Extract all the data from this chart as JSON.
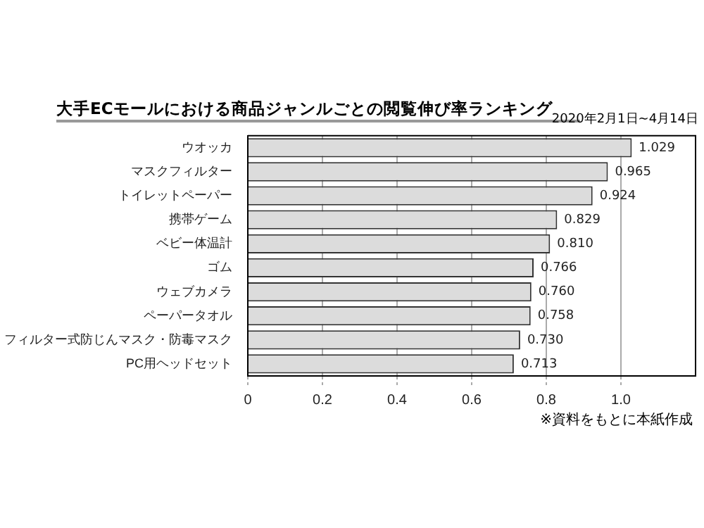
{
  "chart_data": {
    "type": "bar",
    "orientation": "horizontal",
    "title": "大手ECモールにおける商品ジャンルごとの閲覧伸び率ランキング",
    "subtitle": "2020年2月1日~4月14日",
    "categories": [
      "ウオッカ",
      "マスクフィルター",
      "トイレットペーパー",
      "携帯ゲーム",
      "ベビー体温計",
      "ゴム",
      "ウェブカメラ",
      "ペーパータオル",
      "フィルター式防じんマスク・防毒マスク",
      "PC用ヘッドセット"
    ],
    "values": [
      1.029,
      0.965,
      0.924,
      0.829,
      0.81,
      0.766,
      0.76,
      0.758,
      0.73,
      0.713
    ],
    "value_labels": [
      "1.029",
      "0.965",
      "0.924",
      "0.829",
      "0.810",
      "0.766",
      "0.760",
      "0.758",
      "0.730",
      "0.713"
    ],
    "color": "#dcdcdc",
    "xlim": [
      0,
      1.2
    ],
    "xticks": [
      0,
      0.2,
      0.4,
      0.6,
      0.8,
      {
        "value": 1,
        "label": "1.0"
      }
    ],
    "grid": "x",
    "legend": false,
    "annotations": [
      "※資料をもとに本紙作成"
    ]
  }
}
